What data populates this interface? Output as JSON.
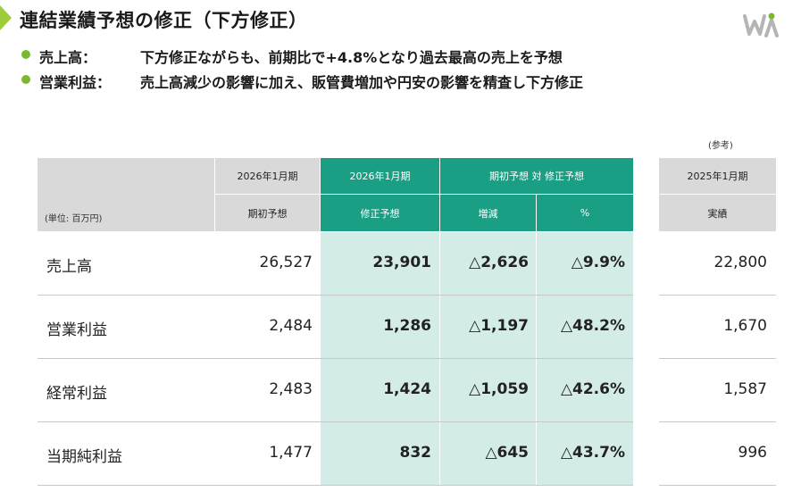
{
  "page_title": "連結業績予想の修正（下方修正）",
  "bullets": [
    {
      "label": "売上高：",
      "text": "下方修正ながらも、前期比で+4.8%となり過去最高の売上を予想"
    },
    {
      "label": "営業利益：",
      "text": "売上高減少の影響に加え、販管費増加や円安の影響を精査し下方修正"
    }
  ],
  "ref_note": "(参考)",
  "table": {
    "unit_label": "(単位: 百万円)",
    "headers": {
      "initial_period": "2026年1月期",
      "initial_sub": "期初予想",
      "revised_period": "2026年1月期",
      "revised_sub": "修正予想",
      "comparison": "期初予想 対 修正予想",
      "change_sub": "増減",
      "pct_sub": "%",
      "prev_period": "2025年1月期",
      "prev_sub": "実績"
    },
    "rows": [
      {
        "label": "売上高",
        "initial": "26,527",
        "revised": "23,901",
        "change": "△2,626",
        "pct": "△9.9%",
        "prev": "22,800"
      },
      {
        "label": "営業利益",
        "initial": "2,484",
        "revised": "1,286",
        "change": "△1,197",
        "pct": "△48.2%",
        "prev": "1,670"
      },
      {
        "label": "経常利益",
        "initial": "2,483",
        "revised": "1,424",
        "change": "△1,059",
        "pct": "△42.6%",
        "prev": "1,587"
      },
      {
        "label": "当期純利益",
        "initial": "1,477",
        "revised": "832",
        "change": "△645",
        "pct": "△43.7%",
        "prev": "996"
      }
    ]
  },
  "colors": {
    "accent_green": "#1a9e84",
    "band_light": "#d4ece8",
    "header_gray": "#d9d9d9",
    "bullet_green": "#7cb82f"
  },
  "logo_icon": "company-logo-icon"
}
